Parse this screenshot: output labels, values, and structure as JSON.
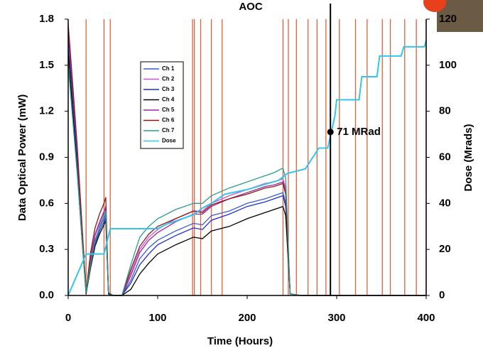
{
  "chart_data": {
    "type": "line",
    "title": "AOC",
    "xlabel": "Time (Hours)",
    "ylabel": "Data Optical Power (mW)",
    "y2label": "Dose (Mrads)",
    "xlim": [
      0,
      400
    ],
    "ylim": [
      0,
      1.8
    ],
    "y2lim": [
      0,
      120
    ],
    "xticks": [
      0,
      100,
      200,
      300,
      400
    ],
    "yticks": [
      {
        "value": 0,
        "label": "0.0"
      },
      0.3,
      0.6,
      0.9,
      1.2,
      1.5,
      1.8
    ],
    "y2ticks": [
      0,
      20,
      40,
      60,
      80,
      100,
      120
    ],
    "grid": false,
    "legend": "upper left",
    "x": [
      0,
      5,
      10,
      15,
      20,
      25,
      30,
      35,
      40,
      42,
      45,
      50,
      60,
      70,
      80,
      90,
      100,
      120,
      140,
      150,
      160,
      180,
      200,
      220,
      230,
      240,
      243,
      248,
      260,
      300,
      400
    ],
    "series": [
      {
        "name": "Ch 1",
        "color": "#3a5fcd",
        "values": [
          1.72,
          1.3,
          0.9,
          0.45,
          0.03,
          0.22,
          0.36,
          0.44,
          0.5,
          0.53,
          0.02,
          0.0,
          0.0,
          0.1,
          0.24,
          0.31,
          0.36,
          0.42,
          0.47,
          0.46,
          0.52,
          0.55,
          0.6,
          0.63,
          0.65,
          0.67,
          0.6,
          0.01,
          0.0,
          0.0,
          0.0
        ]
      },
      {
        "name": "Ch 2",
        "color": "#d050d0",
        "values": [
          1.75,
          1.35,
          0.95,
          0.48,
          0.02,
          0.25,
          0.4,
          0.48,
          0.55,
          0.58,
          0.02,
          0.0,
          0.0,
          0.15,
          0.3,
          0.38,
          0.43,
          0.5,
          0.55,
          0.55,
          0.6,
          0.65,
          0.69,
          0.73,
          0.74,
          0.76,
          0.7,
          0.01,
          0.0,
          0.0,
          0.0
        ]
      },
      {
        "name": "Ch 3",
        "color": "#1f2fd0",
        "values": [
          1.7,
          1.28,
          0.88,
          0.44,
          0.02,
          0.2,
          0.34,
          0.42,
          0.48,
          0.51,
          0.02,
          0.0,
          0.0,
          0.08,
          0.2,
          0.27,
          0.33,
          0.39,
          0.44,
          0.43,
          0.49,
          0.53,
          0.58,
          0.61,
          0.63,
          0.65,
          0.58,
          0.01,
          0.0,
          0.0,
          0.0
        ]
      },
      {
        "name": "Ch 4",
        "color": "#000000",
        "values": [
          1.6,
          1.2,
          0.82,
          0.4,
          0.01,
          0.18,
          0.32,
          0.4,
          0.46,
          0.49,
          0.01,
          0.0,
          0.0,
          0.04,
          0.14,
          0.21,
          0.27,
          0.33,
          0.38,
          0.37,
          0.42,
          0.45,
          0.5,
          0.54,
          0.56,
          0.58,
          0.52,
          0.01,
          0.0,
          0.0,
          0.0
        ]
      },
      {
        "name": "Ch 5",
        "color": "#9a2a9a",
        "values": [
          1.74,
          1.33,
          0.93,
          0.47,
          0.02,
          0.24,
          0.39,
          0.47,
          0.54,
          0.57,
          0.02,
          0.0,
          0.0,
          0.13,
          0.28,
          0.36,
          0.41,
          0.48,
          0.53,
          0.53,
          0.58,
          0.63,
          0.67,
          0.71,
          0.72,
          0.74,
          0.68,
          0.01,
          0.0,
          0.0,
          0.0
        ]
      },
      {
        "name": "Ch 6",
        "color": "#8b1a1a",
        "values": [
          1.77,
          1.38,
          0.98,
          0.5,
          0.02,
          0.28,
          0.44,
          0.53,
          0.6,
          0.64,
          0.02,
          0.0,
          0.0,
          0.17,
          0.32,
          0.4,
          0.45,
          0.5,
          0.55,
          0.54,
          0.59,
          0.63,
          0.66,
          0.7,
          0.71,
          0.73,
          0.66,
          0.01,
          0.0,
          0.0,
          0.0
        ]
      },
      {
        "name": "Ch 7",
        "color": "#2a9d8f",
        "values": [
          1.5,
          1.15,
          0.8,
          0.4,
          0.02,
          0.2,
          0.35,
          0.45,
          0.52,
          0.55,
          0.02,
          0.0,
          0.0,
          0.2,
          0.38,
          0.45,
          0.5,
          0.56,
          0.6,
          0.6,
          0.65,
          0.7,
          0.74,
          0.78,
          0.8,
          0.83,
          0.76,
          0.01,
          0.0,
          0.0,
          0.0
        ]
      },
      {
        "name": "Dose",
        "color": "#33c5ee",
        "axis": "y2",
        "x": [
          0,
          20,
          40,
          47,
          100,
          110,
          140,
          150,
          160,
          175,
          200,
          235,
          245,
          265,
          280,
          290,
          298,
          300,
          325,
          328,
          345,
          348,
          372,
          375,
          398,
          400
        ],
        "values": [
          0,
          18,
          18,
          29,
          29,
          31,
          35,
          38,
          40,
          44,
          46,
          50,
          53,
          55,
          64,
          64,
          78,
          85,
          85,
          95,
          95,
          104,
          104,
          108,
          108,
          111
        ]
      }
    ],
    "event_lines": {
      "color": "#e0603a",
      "x": [
        20,
        40,
        47,
        139,
        141,
        148,
        160,
        172,
        240,
        246,
        255,
        268,
        278,
        288,
        303,
        321,
        334,
        351,
        360,
        376,
        389,
        400
      ]
    },
    "annotation": {
      "text": "71 MRad",
      "x": 293,
      "y": 71,
      "axis": "y2"
    }
  }
}
